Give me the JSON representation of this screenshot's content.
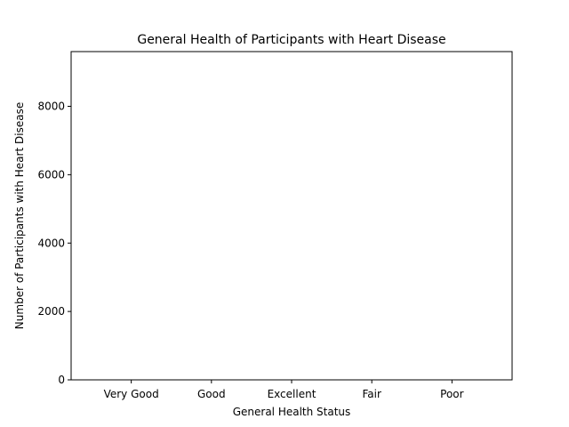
{
  "chart_data": {
    "type": "bar",
    "title": "General Health of Participants with Heart Disease",
    "xlabel": "General Health Status",
    "ylabel": "Number of Participants with Heart Disease",
    "categories": [
      "Very Good",
      "Good",
      "Excellent",
      "Fair",
      "Poor"
    ],
    "values": [
      0,
      0,
      0,
      0,
      0
    ],
    "ylim": [
      0,
      9600
    ],
    "yticks": [
      "0",
      "2000",
      "4000",
      "6000",
      "8000"
    ],
    "grid": false,
    "legend": "none",
    "bar_color": "#1f77b4"
  }
}
